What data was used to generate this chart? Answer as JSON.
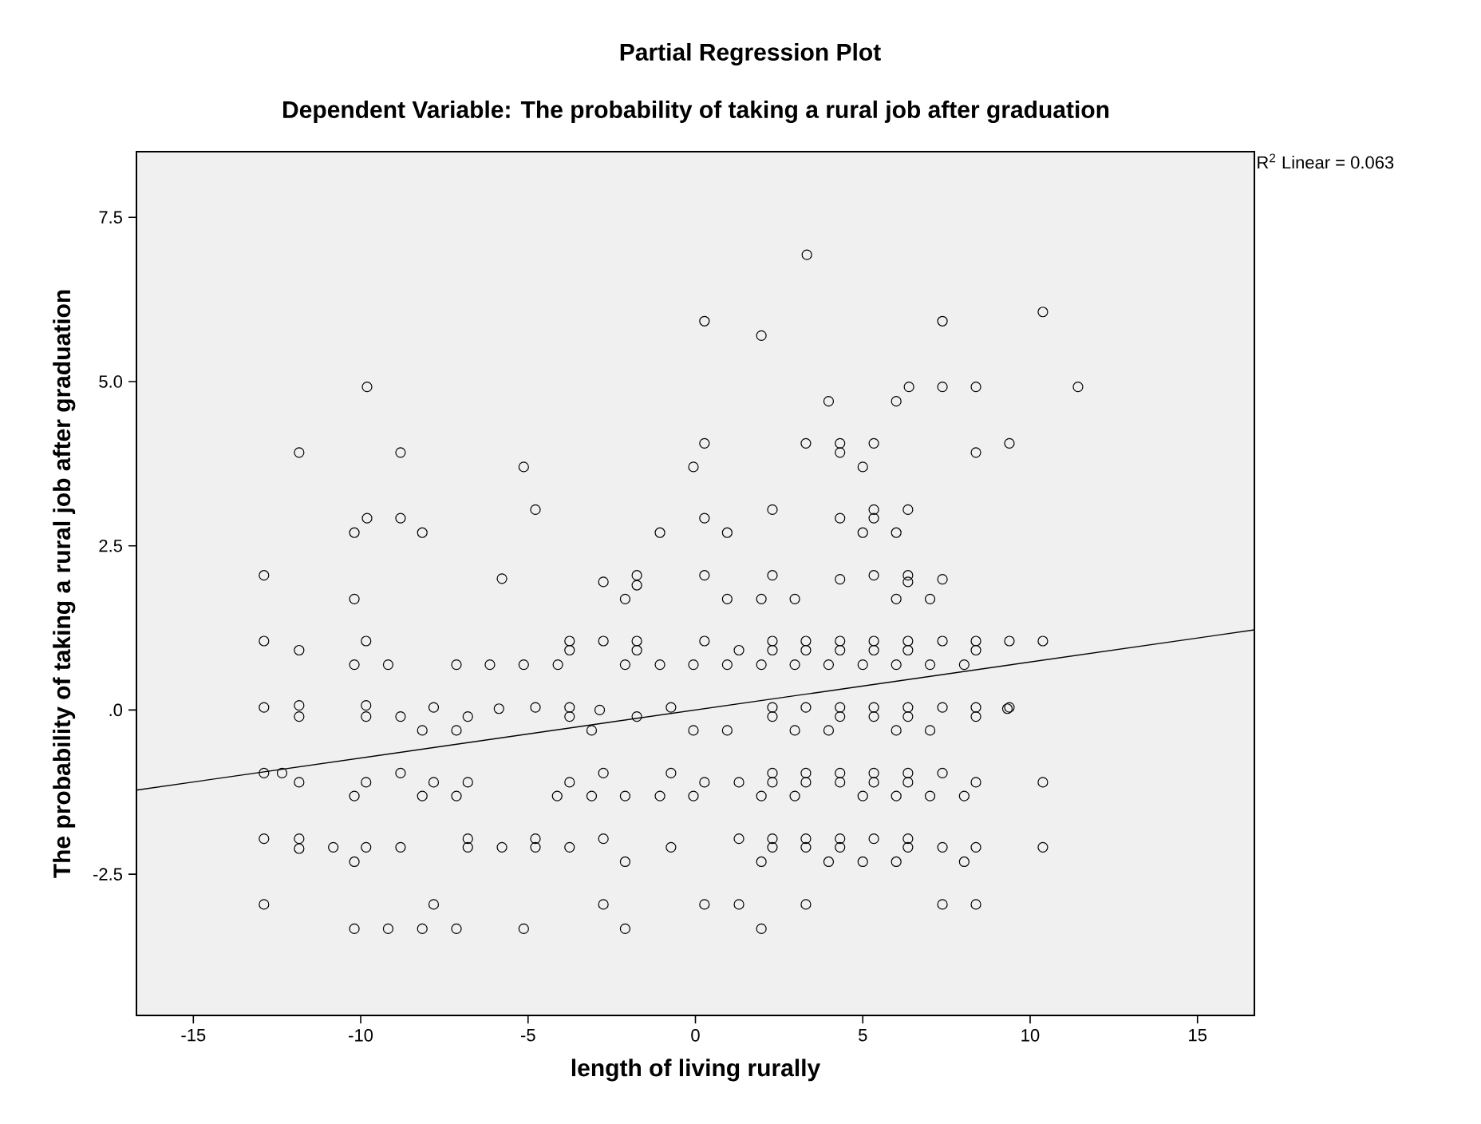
{
  "chart_data": {
    "type": "scatter",
    "title": "Partial Regression Plot",
    "subtitle": "Dependent Variable: The probability of taking a rural job after graduation",
    "xlabel": "length of living rurally",
    "ylabel": "The probability of taking a rural job after graduation",
    "annotations": [
      "R$^{2}$ Linear = 0.063"
    ],
    "xlim": [
      -16.7,
      16.7
    ],
    "ylim": [
      -4.65,
      8.5
    ],
    "xticks": [
      -15,
      -10,
      -5,
      0,
      5,
      10,
      15
    ],
    "yticks": [
      -2.5,
      {
        "value": 0,
        "label": ".0"
      },
      2.5,
      {
        "value": 5,
        "label": "5.0"
      },
      7.5
    ],
    "grid": false,
    "marker": "circle",
    "line_style": "solid",
    "series": [
      {
        "color": "#000000",
        "x": [
          0.27,
          -9.81,
          -11.84,
          -8.81,
          -5.13,
          0.27,
          -0.06,
          -4.78,
          -9.81,
          -10.19,
          -8.81,
          -8.16,
          -1.06,
          0.27,
          -12.89,
          -5.78,
          -2.75,
          -1.75,
          -1.75,
          -2.1,
          -10.19,
          0.27,
          -12.89,
          -11.84,
          -9.84,
          -10.19,
          -9.18,
          -7.14,
          -6.14,
          -5.13,
          -4.11,
          -3.76,
          -3.76,
          -2.75,
          -1.75,
          -1.75,
          -2.1,
          -1.06,
          -0.06,
          0.27,
          -12.89,
          -11.84,
          -11.84,
          -9.84,
          -9.84,
          -8.81,
          -7.82,
          -8.16,
          -7.14,
          -6.8,
          -5.87,
          -4.78,
          -3.76,
          -3.76,
          -3.1,
          -2.86,
          -1.75,
          -0.73,
          -0.06,
          -12.89,
          -12.35,
          -11.84,
          -9.84,
          -10.19,
          -8.81,
          -8.16,
          -7.82,
          -7.14,
          -6.8,
          -4.13,
          -3.76,
          -3.1,
          -2.75,
          -2.1,
          -1.06,
          -0.73,
          -0.06,
          0.27,
          -12.89,
          -11.84,
          -11.84,
          -10.82,
          -9.84,
          -10.19,
          -8.81,
          -6.8,
          -6.8,
          -5.78,
          -4.78,
          -4.78,
          -3.76,
          -2.75,
          -2.1,
          -0.73,
          -12.89,
          -7.82,
          -2.75,
          0.27,
          -10.19,
          -9.18,
          -8.16,
          -7.14,
          -5.13,
          -2.1,
          3.33,
          1.97,
          7.38,
          10.38,
          3.98,
          6.0,
          6.38,
          7.38,
          8.38,
          11.43,
          3.3,
          4.32,
          4.32,
          5.33,
          5.0,
          8.38,
          9.38,
          0.95,
          2.3,
          4.32,
          5.33,
          5.33,
          6.35,
          5.0,
          6.0,
          2.3,
          4.32,
          5.33,
          6.35,
          6.35,
          7.38,
          0.95,
          1.97,
          2.97,
          6.0,
          7.01,
          1.3,
          2.3,
          2.3,
          3.3,
          3.3,
          4.32,
          4.32,
          5.33,
          5.33,
          6.35,
          6.35,
          7.38,
          8.38,
          8.38,
          9.38,
          10.38,
          0.95,
          1.97,
          2.97,
          3.98,
          5.0,
          6.0,
          7.01,
          8.03,
          2.3,
          2.3,
          3.3,
          4.32,
          4.32,
          5.33,
          5.33,
          6.35,
          6.35,
          7.38,
          8.38,
          8.38,
          9.32,
          9.38,
          0.95,
          2.97,
          3.98,
          6.0,
          7.01,
          1.3,
          2.3,
          2.3,
          3.3,
          3.3,
          4.32,
          4.32,
          5.33,
          5.33,
          6.35,
          6.35,
          7.38,
          8.38,
          10.38,
          1.97,
          2.97,
          5.0,
          6.0,
          7.01,
          8.03,
          1.3,
          2.3,
          2.3,
          3.3,
          3.3,
          4.32,
          4.32,
          5.33,
          6.35,
          6.35,
          7.38,
          8.38,
          10.38,
          1.97,
          3.98,
          5.0,
          6.0,
          8.03,
          1.3,
          3.3,
          7.38,
          8.38,
          1.97
        ],
        "values": [
          5.92,
          4.92,
          3.92,
          3.92,
          3.7,
          4.06,
          3.7,
          3.05,
          2.92,
          2.7,
          2.92,
          2.7,
          2.7,
          2.92,
          2.05,
          2.0,
          1.95,
          2.05,
          1.9,
          1.69,
          1.69,
          2.05,
          1.05,
          0.91,
          1.05,
          0.69,
          0.69,
          0.69,
          0.69,
          0.69,
          0.69,
          1.05,
          0.91,
          1.05,
          1.05,
          0.91,
          0.69,
          0.69,
          0.69,
          1.05,
          0.04,
          0.07,
          -0.1,
          0.07,
          -0.1,
          -0.1,
          0.04,
          -0.31,
          -0.31,
          -0.1,
          0.02,
          0.04,
          0.04,
          -0.1,
          -0.31,
          0,
          -0.1,
          0.04,
          -0.31,
          -0.96,
          -0.96,
          -1.1,
          -1.1,
          -1.31,
          -0.96,
          -1.31,
          -1.1,
          -1.31,
          -1.1,
          -1.31,
          -1.1,
          -1.31,
          -0.96,
          -1.31,
          -1.31,
          -0.96,
          -1.31,
          -1.1,
          -1.96,
          -1.96,
          -2.11,
          -2.09,
          -2.09,
          -2.31,
          -2.09,
          -1.96,
          -2.09,
          -2.09,
          -1.96,
          -2.09,
          -2.09,
          -1.96,
          -2.31,
          -2.09,
          -2.96,
          -2.96,
          -2.96,
          -2.96,
          -3.33,
          -3.33,
          -3.33,
          -3.33,
          -3.33,
          -3.33,
          6.93,
          5.7,
          5.92,
          6.06,
          4.7,
          4.7,
          4.92,
          4.92,
          4.92,
          4.92,
          4.06,
          4.06,
          3.92,
          4.06,
          3.7,
          3.92,
          4.06,
          2.7,
          3.05,
          2.92,
          3.05,
          2.92,
          3.05,
          2.7,
          2.7,
          2.05,
          1.99,
          2.05,
          2.05,
          1.95,
          1.99,
          1.69,
          1.69,
          1.69,
          1.69,
          1.69,
          0.91,
          1.05,
          0.91,
          1.05,
          0.91,
          1.05,
          0.91,
          1.05,
          0.91,
          1.05,
          0.91,
          1.05,
          1.05,
          0.91,
          1.05,
          1.05,
          0.69,
          0.69,
          0.69,
          0.69,
          0.69,
          0.69,
          0.69,
          0.69,
          0.04,
          -0.1,
          0.04,
          0.04,
          -0.1,
          0.04,
          -0.1,
          0.04,
          -0.1,
          0.04,
          0.04,
          -0.1,
          0.02,
          0.04,
          -0.31,
          -0.31,
          -0.31,
          -0.31,
          -0.31,
          -1.1,
          -0.96,
          -1.1,
          -0.96,
          -1.1,
          -0.96,
          -1.1,
          -0.96,
          -1.1,
          -0.96,
          -1.1,
          -0.96,
          -1.1,
          -1.1,
          -1.31,
          -1.31,
          -1.31,
          -1.31,
          -1.31,
          -1.31,
          -1.96,
          -1.96,
          -2.09,
          -1.96,
          -2.09,
          -1.96,
          -2.09,
          -1.96,
          -1.96,
          -2.09,
          -2.09,
          -2.09,
          -2.09,
          -2.31,
          -2.31,
          -2.31,
          -2.31,
          -2.31,
          -2.96,
          -2.96,
          -2.96,
          -2.96,
          -3.33
        ]
      },
      {
        "type": "line",
        "color": "#000000",
        "marker": "none",
        "x": [
          -16.7,
          16.7
        ],
        "values": [
          -1.22,
          1.22
        ]
      }
    ]
  }
}
